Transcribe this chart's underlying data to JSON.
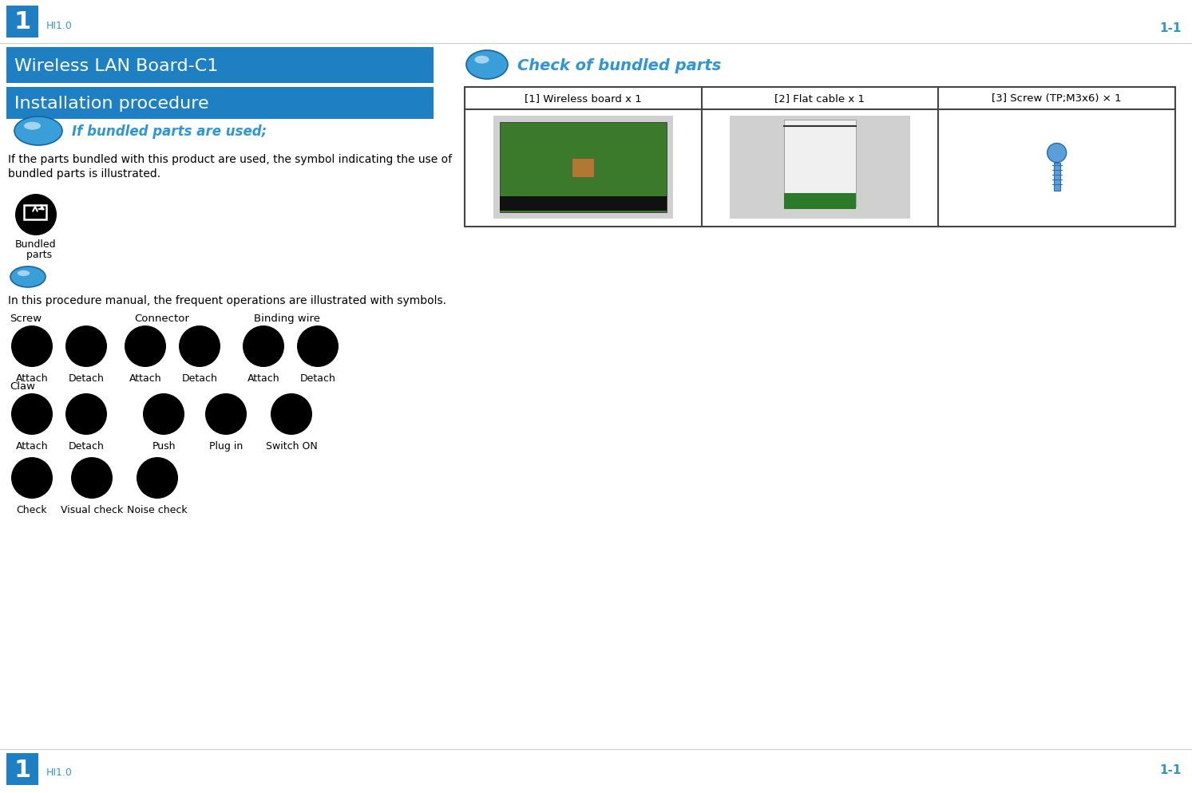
{
  "page_num": "1-1",
  "header_blue": "#1e7fc2",
  "section_title_color": "#2e96d4",
  "title1": "Wireless LAN Board-C1",
  "title2": "Installation procedure",
  "section1_title": "If bundled parts are used;",
  "section1_text": "If the parts bundled with this product are used, the symbol indicating the use of\nbundled parts is illustrated.",
  "bundled_label1": "Bundled",
  "bundled_label2": "  parts",
  "section2_text": "In this procedure manual, the frequent operations are illustrated with symbols.",
  "screw_label": "Screw",
  "connector_label": "Connector",
  "binding_label": "Binding wire",
  "claw_label": "Claw",
  "icon_labels_row1": [
    "Attach",
    "Detach",
    "Attach",
    "Detach",
    "Attach",
    "Detach"
  ],
  "icon_labels_row2": [
    "Attach",
    "Detach",
    "Push",
    "Plug in",
    "Switch ON"
  ],
  "icon_labels_row3": [
    "Check",
    "Visual check",
    "Noise check"
  ],
  "check_section_title": "Check of bundled parts",
  "parts_headers": [
    "[1] Wireless board x 1",
    "[2] Flat cable x 1",
    "[3] Screw (TP;M3x6) × 1"
  ],
  "hi_text": "HI1.0"
}
